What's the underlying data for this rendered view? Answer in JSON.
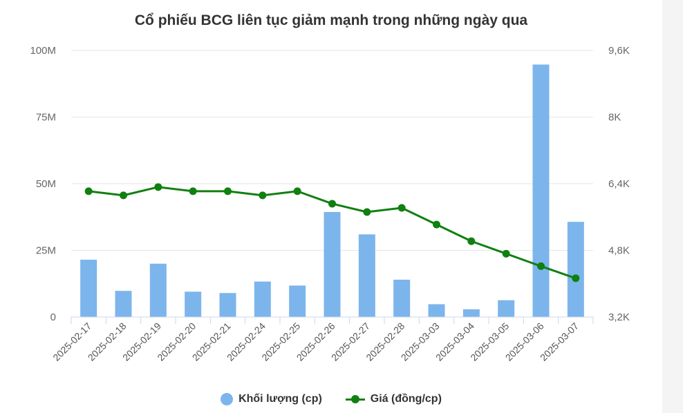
{
  "chart_data": {
    "type": "bar+line",
    "title": "Cổ phiếu BCG liên tục giảm mạnh trong những ngày qua",
    "categories": [
      "2025-02-17",
      "2025-02-18",
      "2025-02-19",
      "2025-02-20",
      "2025-02-21",
      "2025-02-24",
      "2025-02-25",
      "2025-02-26",
      "2025-02-27",
      "2025-02-28",
      "2025-03-03",
      "2025-03-04",
      "2025-03-05",
      "2025-03-06",
      "2025-03-07"
    ],
    "series": [
      {
        "name": "Khối lượng (cp)",
        "type": "bar",
        "axis": "left",
        "color": "#7cb5ec",
        "values": [
          21500000,
          9800000,
          20000000,
          9500000,
          9000000,
          13300000,
          11800000,
          39400000,
          31000000,
          14000000,
          4800000,
          2900000,
          6300000,
          94700000,
          35700000
        ]
      },
      {
        "name": "Giá (đồng/cp)",
        "type": "line",
        "axis": "right",
        "color": "#108010",
        "values": [
          6220,
          6120,
          6320,
          6220,
          6220,
          6120,
          6220,
          5920,
          5720,
          5820,
          5420,
          5020,
          4720,
          4420,
          4130
        ]
      }
    ],
    "y_left": {
      "min": 0,
      "max": 100000000,
      "ticks": [
        "0",
        "25M",
        "50M",
        "75M",
        "100M"
      ]
    },
    "y_right": {
      "min": 3200,
      "max": 9600,
      "ticks": [
        "3,2K",
        "4,8K",
        "6,4K",
        "8K",
        "9,6K"
      ]
    },
    "grid": true,
    "legend": "bottom-center"
  }
}
